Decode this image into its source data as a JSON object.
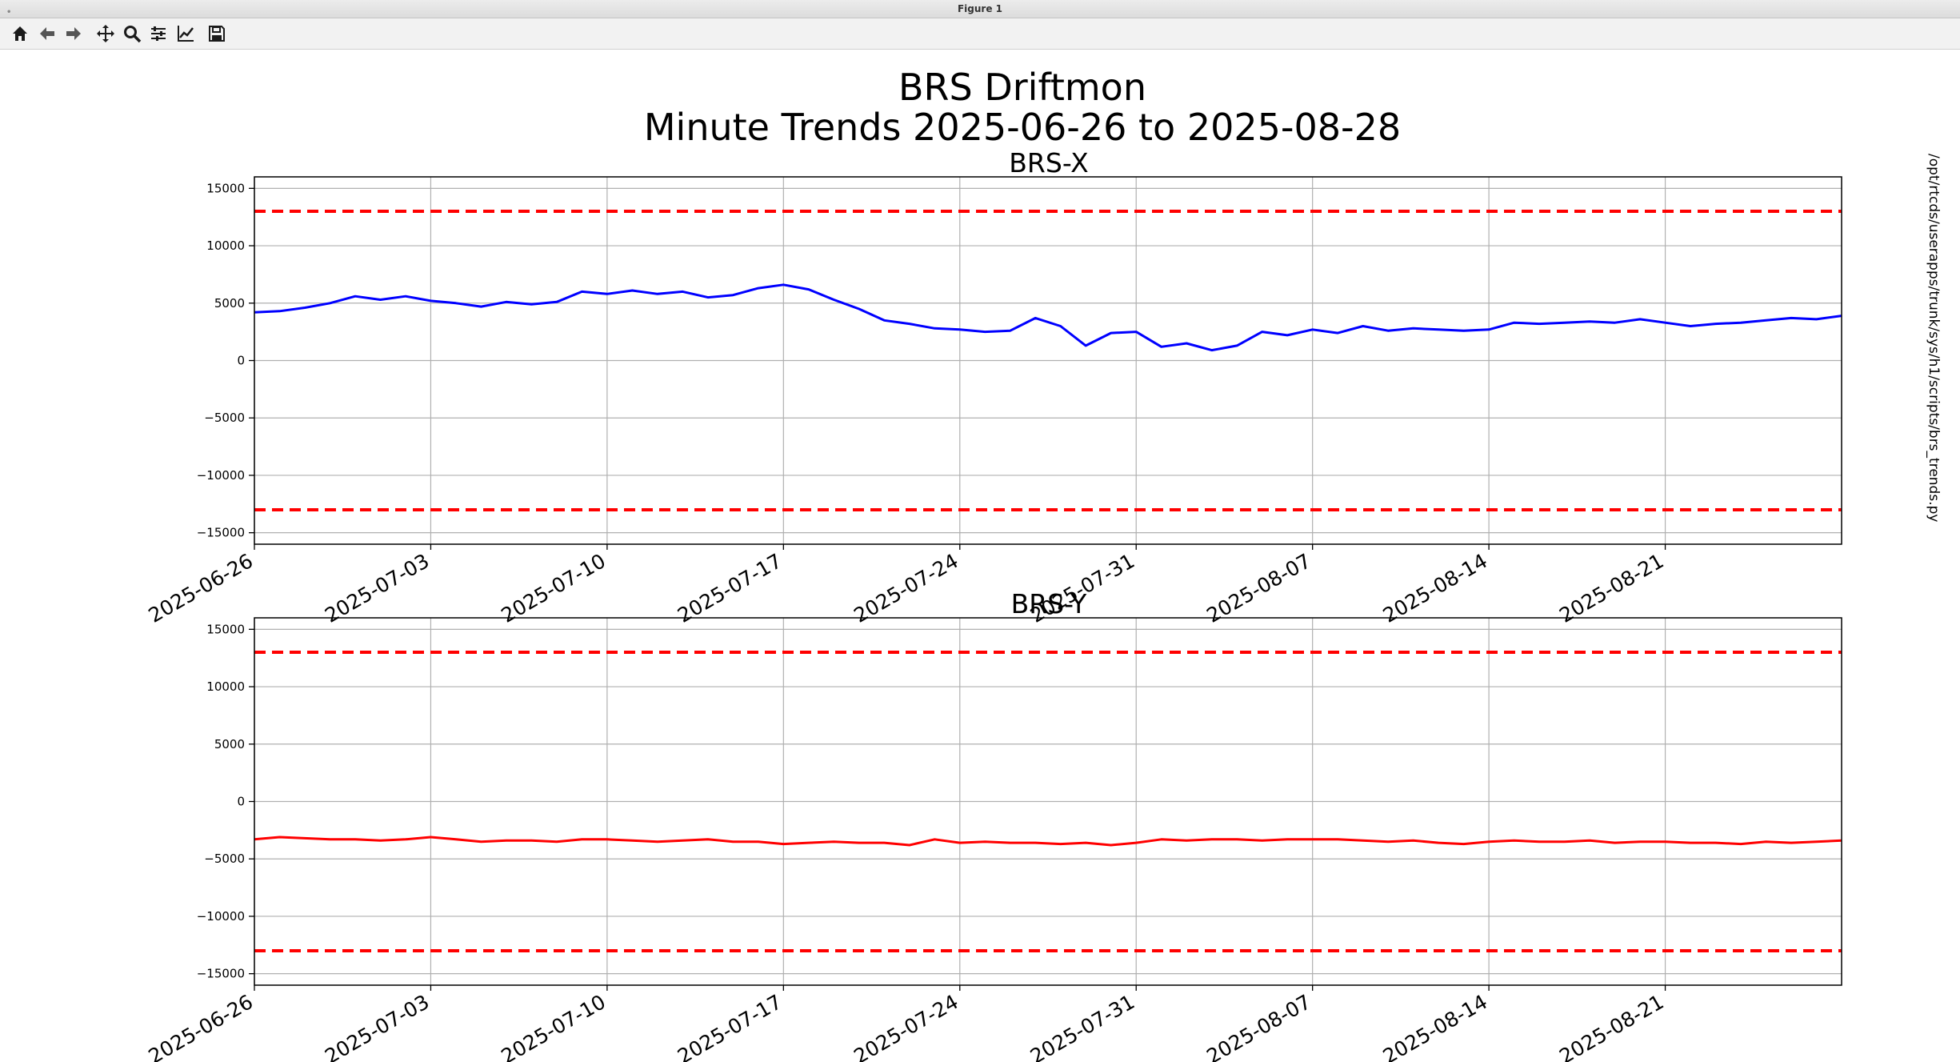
{
  "window": {
    "title": "Figure 1"
  },
  "toolbar": {
    "tools": [
      {
        "name": "home-icon"
      },
      {
        "name": "back-arrow-icon"
      },
      {
        "name": "forward-arrow-icon"
      },
      {
        "name": "pan-icon"
      },
      {
        "name": "zoom-icon"
      },
      {
        "name": "configure-subplots-icon"
      },
      {
        "name": "edit-axes-icon"
      },
      {
        "name": "save-icon"
      }
    ]
  },
  "figure": {
    "title_line1": "BRS Driftmon",
    "title_line2": "Minute Trends 2025-06-26  to 2025-08-28",
    "side_text": "/opt/rtcds/userapps/trunk/sys/h1/scripts/brs_trends.py"
  },
  "colors": {
    "x_series": "#0000ff",
    "y_series": "#ff0000",
    "threshold": "#ff0000",
    "grid": "#b0b0b0"
  },
  "chart_data": [
    {
      "type": "line",
      "title": "BRS-X",
      "xlim": [
        "2025-06-26",
        "2025-08-28"
      ],
      "ylim": [
        -16000,
        16000
      ],
      "yticks": [
        15000,
        10000,
        5000,
        0,
        -5000,
        -10000,
        -15000
      ],
      "ytick_labels": [
        "15000",
        "10000",
        "5000",
        "0",
        "−5000",
        "−10000",
        "−15000"
      ],
      "xticks": [
        "2025-06-26",
        "2025-07-03",
        "2025-07-10",
        "2025-07-17",
        "2025-07-24",
        "2025-07-31",
        "2025-08-07",
        "2025-08-14",
        "2025-08-21"
      ],
      "grid": true,
      "thresholds": [
        13000,
        -13000
      ],
      "series": [
        {
          "color": "#0000ff",
          "x": [
            "2025-06-26",
            "2025-06-27",
            "2025-06-28",
            "2025-06-29",
            "2025-06-30",
            "2025-07-01",
            "2025-07-02",
            "2025-07-03",
            "2025-07-04",
            "2025-07-05",
            "2025-07-06",
            "2025-07-07",
            "2025-07-08",
            "2025-07-09",
            "2025-07-10",
            "2025-07-11",
            "2025-07-12",
            "2025-07-13",
            "2025-07-14",
            "2025-07-15",
            "2025-07-16",
            "2025-07-17",
            "2025-07-18",
            "2025-07-19",
            "2025-07-20",
            "2025-07-21",
            "2025-07-22",
            "2025-07-23",
            "2025-07-24",
            "2025-07-25",
            "2025-07-26",
            "2025-07-27",
            "2025-07-28",
            "2025-07-29",
            "2025-07-30",
            "2025-07-31",
            "2025-08-01",
            "2025-08-02",
            "2025-08-03",
            "2025-08-04",
            "2025-08-05",
            "2025-08-06",
            "2025-08-07",
            "2025-08-08",
            "2025-08-09",
            "2025-08-10",
            "2025-08-11",
            "2025-08-12",
            "2025-08-13",
            "2025-08-14",
            "2025-08-15",
            "2025-08-16",
            "2025-08-17",
            "2025-08-18",
            "2025-08-19",
            "2025-08-20",
            "2025-08-21",
            "2025-08-22",
            "2025-08-23",
            "2025-08-24",
            "2025-08-25",
            "2025-08-26",
            "2025-08-27",
            "2025-08-28"
          ],
          "y": [
            4200,
            4300,
            4600,
            5000,
            5600,
            5300,
            5600,
            5200,
            5000,
            4700,
            5100,
            4900,
            5100,
            6000,
            5800,
            6100,
            5800,
            6000,
            5500,
            5700,
            6300,
            6600,
            6200,
            5300,
            4500,
            3500,
            3200,
            2800,
            2700,
            2500,
            2600,
            3700,
            3000,
            1300,
            2400,
            2500,
            1200,
            1500,
            900,
            1300,
            2500,
            2200,
            2700,
            2400,
            3000,
            2600,
            2800,
            2700,
            2600,
            2700,
            3300,
            3200,
            3300,
            3400,
            3300,
            3600,
            3300,
            3000,
            3200,
            3300,
            3500,
            3700,
            3600,
            3900
          ]
        }
      ]
    },
    {
      "type": "line",
      "title": "BRS-Y",
      "xlim": [
        "2025-06-26",
        "2025-08-28"
      ],
      "ylim": [
        -16000,
        16000
      ],
      "yticks": [
        15000,
        10000,
        5000,
        0,
        -5000,
        -10000,
        -15000
      ],
      "ytick_labels": [
        "15000",
        "10000",
        "5000",
        "0",
        "−5000",
        "−10000",
        "−15000"
      ],
      "xticks": [
        "2025-06-26",
        "2025-07-03",
        "2025-07-10",
        "2025-07-17",
        "2025-07-24",
        "2025-07-31",
        "2025-08-07",
        "2025-08-14",
        "2025-08-21"
      ],
      "grid": true,
      "thresholds": [
        13000,
        -13000
      ],
      "series": [
        {
          "color": "#ff0000",
          "x": [
            "2025-06-26",
            "2025-06-27",
            "2025-06-28",
            "2025-06-29",
            "2025-06-30",
            "2025-07-01",
            "2025-07-02",
            "2025-07-03",
            "2025-07-04",
            "2025-07-05",
            "2025-07-06",
            "2025-07-07",
            "2025-07-08",
            "2025-07-09",
            "2025-07-10",
            "2025-07-11",
            "2025-07-12",
            "2025-07-13",
            "2025-07-14",
            "2025-07-15",
            "2025-07-16",
            "2025-07-17",
            "2025-07-18",
            "2025-07-19",
            "2025-07-20",
            "2025-07-21",
            "2025-07-22",
            "2025-07-23",
            "2025-07-24",
            "2025-07-25",
            "2025-07-26",
            "2025-07-27",
            "2025-07-28",
            "2025-07-29",
            "2025-07-30",
            "2025-07-31",
            "2025-08-01",
            "2025-08-02",
            "2025-08-03",
            "2025-08-04",
            "2025-08-05",
            "2025-08-06",
            "2025-08-07",
            "2025-08-08",
            "2025-08-09",
            "2025-08-10",
            "2025-08-11",
            "2025-08-12",
            "2025-08-13",
            "2025-08-14",
            "2025-08-15",
            "2025-08-16",
            "2025-08-17",
            "2025-08-18",
            "2025-08-19",
            "2025-08-20",
            "2025-08-21",
            "2025-08-22",
            "2025-08-23",
            "2025-08-24",
            "2025-08-25",
            "2025-08-26",
            "2025-08-27",
            "2025-08-28"
          ],
          "y": [
            -3300,
            -3100,
            -3200,
            -3300,
            -3300,
            -3400,
            -3300,
            -3100,
            -3300,
            -3500,
            -3400,
            -3400,
            -3500,
            -3300,
            -3300,
            -3400,
            -3500,
            -3400,
            -3300,
            -3500,
            -3500,
            -3700,
            -3600,
            -3500,
            -3600,
            -3600,
            -3800,
            -3300,
            -3600,
            -3500,
            -3600,
            -3600,
            -3700,
            -3600,
            -3800,
            -3600,
            -3300,
            -3400,
            -3300,
            -3300,
            -3400,
            -3300,
            -3300,
            -3300,
            -3400,
            -3500,
            -3400,
            -3600,
            -3700,
            -3500,
            -3400,
            -3500,
            -3500,
            -3400,
            -3600,
            -3500,
            -3500,
            -3600,
            -3600,
            -3700,
            -3500,
            -3600,
            -3500,
            -3400
          ]
        }
      ]
    }
  ]
}
